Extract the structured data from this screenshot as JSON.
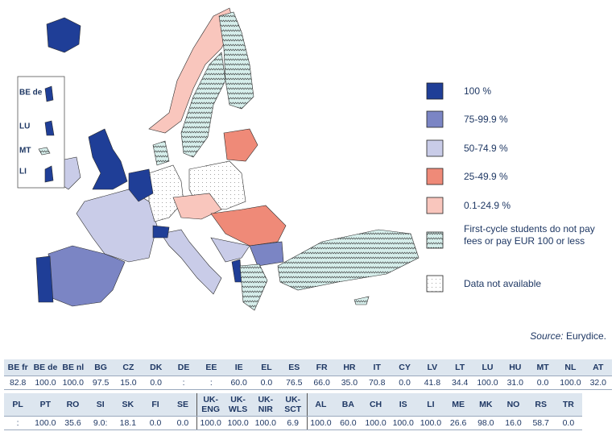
{
  "inset": {
    "labels": [
      "BE de",
      "LU",
      "MT",
      "LI"
    ]
  },
  "legend": {
    "items": [
      "100 %",
      "75-99.9 %",
      "50-74.9 %",
      "25-49.9 %",
      "0.1-24.9 %",
      "First-cycle students do not pay fees or pay EUR 100 or less",
      "Data not available"
    ]
  },
  "source": {
    "label": "Source:",
    "text": "Eurydice."
  },
  "table": {
    "rows": [
      {
        "headers": [
          "BE fr",
          "BE de",
          "BE nl",
          "BG",
          "CZ",
          "DK",
          "DE",
          "EE",
          "IE",
          "EL",
          "ES",
          "FR",
          "HR",
          "IT",
          "CY",
          "LV",
          "LT",
          "LU",
          "HU",
          "MT",
          "NL",
          "AT"
        ],
        "values": [
          "82.8",
          "100.0",
          "100.0",
          "97.5",
          "15.0",
          "0.0",
          ":",
          ":",
          "60.0",
          "0.0",
          "76.5",
          "66.0",
          "35.0",
          "70.8",
          "0.0",
          "41.8",
          "34.4",
          "100.0",
          "31.0",
          "0.0",
          "100.0",
          "32.0"
        ]
      },
      {
        "headers": [
          "PL",
          "PT",
          "RO",
          "SI",
          "SK",
          "FI",
          "SE",
          "UK-ENG",
          "UK-WLS",
          "UK-NIR",
          "UK-SCT",
          "AL",
          "BA",
          "CH",
          "IS",
          "LI",
          "ME",
          "MK",
          "NO",
          "RS",
          "TR"
        ],
        "values": [
          ":",
          "100.0",
          "35.6",
          "9.0:",
          "18.1",
          "0.0",
          "0.0",
          "100.0",
          "100.0",
          "100.0",
          "6.9",
          "100.0",
          "60.0",
          "100.0",
          "100.0",
          "100.0",
          "26.6",
          "98.0",
          "16.0",
          "58.7",
          "0.0"
        ]
      }
    ]
  }
}
